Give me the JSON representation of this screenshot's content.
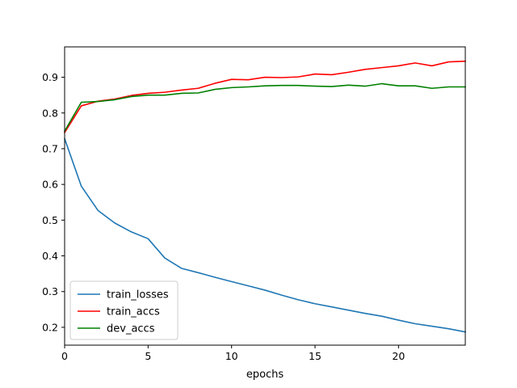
{
  "chart_data": {
    "type": "line",
    "title": "",
    "xlabel": "epochs",
    "ylabel": "",
    "xlim": [
      0,
      24
    ],
    "ylim": [
      0.15,
      0.985
    ],
    "xticks": [
      0,
      5,
      10,
      15,
      20
    ],
    "yticks": [
      0.2,
      0.3,
      0.4,
      0.5,
      0.6,
      0.7,
      0.8,
      0.9
    ],
    "grid": false,
    "legend_position": "lower-left",
    "x": [
      0,
      1,
      2,
      3,
      4,
      5,
      6,
      7,
      8,
      9,
      10,
      11,
      12,
      13,
      14,
      15,
      16,
      17,
      18,
      19,
      20,
      21,
      22,
      23,
      24
    ],
    "series": [
      {
        "name": "train_losses",
        "color": "#1f77b4",
        "values": [
          0.728,
          0.595,
          0.527,
          0.492,
          0.467,
          0.448,
          0.394,
          0.365,
          0.353,
          0.34,
          0.328,
          0.316,
          0.304,
          0.29,
          0.277,
          0.266,
          0.257,
          0.248,
          0.239,
          0.231,
          0.22,
          0.21,
          0.203,
          0.196,
          0.187
        ]
      },
      {
        "name": "train_accs",
        "color": "#ff0000",
        "values": [
          0.745,
          0.82,
          0.833,
          0.839,
          0.849,
          0.855,
          0.858,
          0.864,
          0.869,
          0.883,
          0.894,
          0.893,
          0.9,
          0.899,
          0.901,
          0.909,
          0.907,
          0.914,
          0.922,
          0.927,
          0.932,
          0.94,
          0.932,
          0.943,
          0.945
        ]
      },
      {
        "name": "dev_accs",
        "color": "#008000",
        "values": [
          0.749,
          0.83,
          0.832,
          0.837,
          0.846,
          0.85,
          0.85,
          0.855,
          0.856,
          0.866,
          0.871,
          0.873,
          0.876,
          0.877,
          0.877,
          0.875,
          0.874,
          0.878,
          0.875,
          0.882,
          0.876,
          0.876,
          0.869,
          0.873,
          0.873
        ]
      }
    ]
  }
}
